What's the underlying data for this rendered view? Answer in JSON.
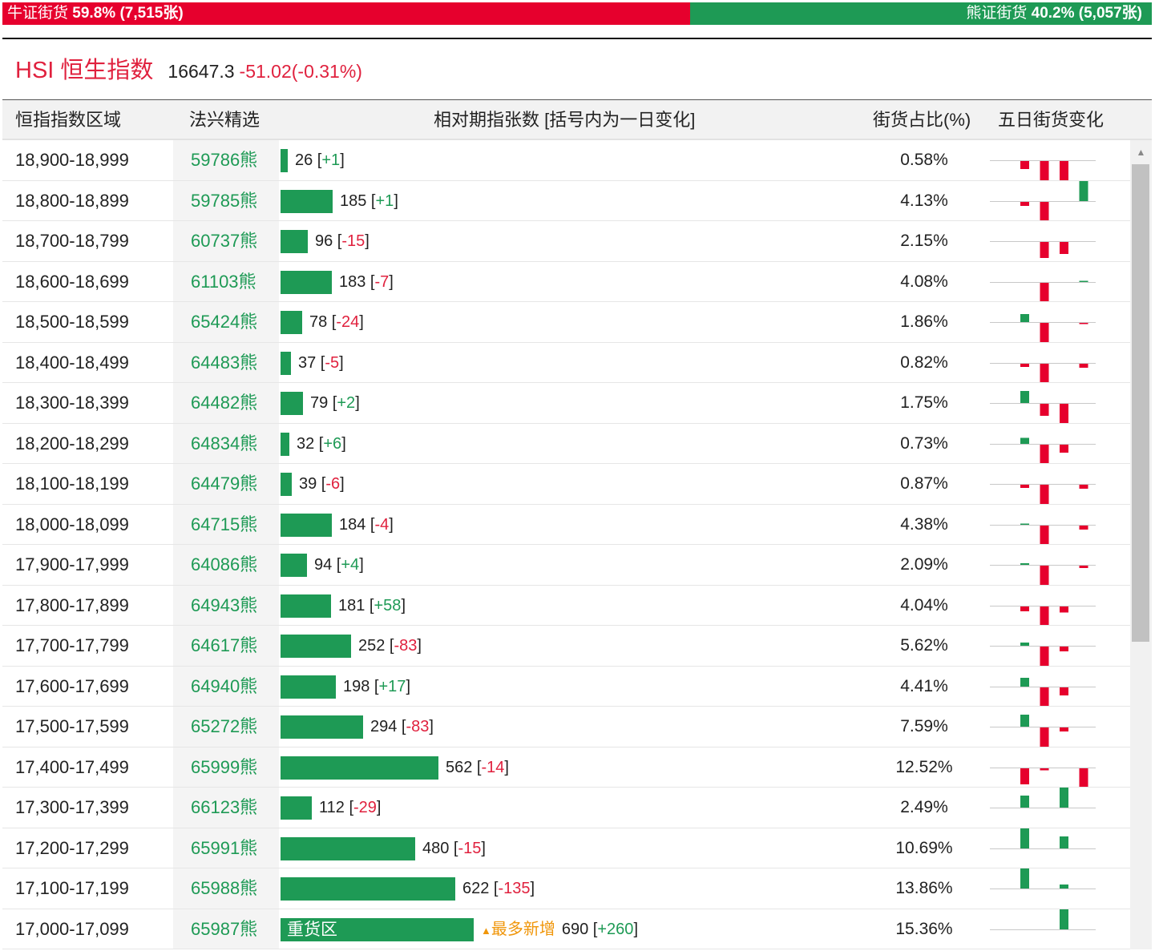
{
  "ratio": {
    "bull_label": "牛证街货",
    "bull_value": "59.8% (7,515张)",
    "bull_share": 0.598,
    "bear_label": "熊证街货",
    "bear_value": "40.2% (5,057张)",
    "bear_share": 0.402
  },
  "index": {
    "name": "HSI 恒生指数",
    "value": "16647.3",
    "change": "-51.02(-0.31%)"
  },
  "headers": {
    "range": "恒指指数区域",
    "warrant": "法兴精选",
    "bar": "相对期指张数 [括号内为一日变化]",
    "pct": "街货占比(%)",
    "spark": "五日街货变化"
  },
  "colors": {
    "bull_red": "#e6002d",
    "bear_green": "#1e9a55",
    "accent_orange": "#f0960a"
  },
  "heavy_zone_label": "重货区",
  "most_added_label": "最多新增",
  "bar_max": 690,
  "rows": [
    {
      "range": "18,900-18,999",
      "warrant": "59786熊",
      "count": 26,
      "change": "+1",
      "pct": "0.58%",
      "spark": [
        -2,
        -5,
        -5,
        0,
        2
      ]
    },
    {
      "range": "18,800-18,899",
      "warrant": "59785熊",
      "count": 185,
      "change": "+1",
      "pct": "4.13%",
      "spark": [
        -1,
        -5,
        0,
        5,
        0
      ]
    },
    {
      "range": "18,700-18,799",
      "warrant": "60737熊",
      "count": 96,
      "change": "-15",
      "pct": "2.15%",
      "spark": [
        0,
        -4,
        -3,
        0,
        -5
      ]
    },
    {
      "range": "18,600-18,699",
      "warrant": "61103熊",
      "count": 183,
      "change": "-7",
      "pct": "4.08%",
      "spark": [
        0,
        -5,
        0,
        0.3,
        -0.6
      ]
    },
    {
      "range": "18,500-18,599",
      "warrant": "65424熊",
      "count": 78,
      "change": "-24",
      "pct": "1.86%",
      "spark": [
        2,
        -5,
        0,
        -0.3,
        -2.5
      ]
    },
    {
      "range": "18,400-18,499",
      "warrant": "64483熊",
      "count": 37,
      "change": "-5",
      "pct": "0.82%",
      "spark": [
        -0.8,
        -5,
        0,
        -1,
        -0.8
      ]
    },
    {
      "range": "18,300-18,399",
      "warrant": "64482熊",
      "count": 79,
      "change": "+2",
      "pct": "1.75%",
      "spark": [
        3,
        -3,
        -5,
        0,
        0.4
      ]
    },
    {
      "range": "18,200-18,299",
      "warrant": "64834熊",
      "count": 32,
      "change": "+6",
      "pct": "0.73%",
      "spark": [
        1.5,
        -5,
        -2,
        0,
        0.2
      ]
    },
    {
      "range": "18,100-18,199",
      "warrant": "64479熊",
      "count": 39,
      "change": "-6",
      "pct": "0.87%",
      "spark": [
        -0.8,
        -5,
        0,
        -1,
        -0.5
      ]
    },
    {
      "range": "18,000-18,099",
      "warrant": "64715熊",
      "count": 184,
      "change": "-4",
      "pct": "4.38%",
      "spark": [
        0.3,
        -5,
        0,
        -1,
        -0.5
      ]
    },
    {
      "range": "17,900-17,999",
      "warrant": "64086熊",
      "count": 94,
      "change": "+4",
      "pct": "2.09%",
      "spark": [
        0.4,
        -5,
        0,
        -0.6,
        0.4
      ]
    },
    {
      "range": "17,800-17,899",
      "warrant": "64943熊",
      "count": 181,
      "change": "+58",
      "pct": "4.04%",
      "spark": [
        -1.2,
        -5,
        -1.5,
        0,
        1.2
      ]
    },
    {
      "range": "17,700-17,799",
      "warrant": "64617熊",
      "count": 252,
      "change": "-83",
      "pct": "5.62%",
      "spark": [
        0.8,
        -5,
        -1.2,
        0,
        -1.2
      ]
    },
    {
      "range": "17,600-17,699",
      "warrant": "64940熊",
      "count": 198,
      "change": "+17",
      "pct": "4.41%",
      "spark": [
        2.2,
        -5,
        -2,
        0,
        0.4
      ]
    },
    {
      "range": "17,500-17,599",
      "warrant": "65272熊",
      "count": 294,
      "change": "-83",
      "pct": "7.59%",
      "spark": [
        3,
        -5,
        -1,
        0,
        -1
      ]
    },
    {
      "range": "17,400-17,499",
      "warrant": "65999熊",
      "count": 562,
      "change": "-14",
      "pct": "12.52%",
      "spark": [
        -4,
        -0.5,
        0,
        -5,
        -0.5
      ]
    },
    {
      "range": "17,300-17,399",
      "warrant": "66123熊",
      "count": 112,
      "change": "-29",
      "pct": "2.49%",
      "spark": [
        3,
        0,
        5,
        0,
        -1.5
      ]
    },
    {
      "range": "17,200-17,299",
      "warrant": "65991熊",
      "count": 480,
      "change": "-15",
      "pct": "10.69%",
      "spark": [
        5,
        0,
        3,
        0,
        -0.5
      ]
    },
    {
      "range": "17,100-17,199",
      "warrant": "65988熊",
      "count": 622,
      "change": "-135",
      "pct": "13.86%",
      "spark": [
        5,
        0,
        1,
        0,
        -1.3
      ]
    },
    {
      "range": "17,000-17,099",
      "warrant": "65987熊",
      "count": 690,
      "change": "+260",
      "pct": "15.36%",
      "spark": [
        0,
        0,
        5,
        0,
        3
      ],
      "heavy": true
    }
  ]
}
